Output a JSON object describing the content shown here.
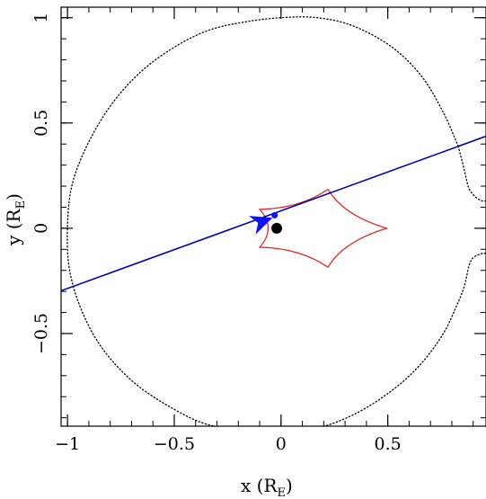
{
  "chart_data": {
    "type": "line",
    "title": "",
    "xlabel": {
      "main": "x (R",
      "sub": "E",
      "close": ")"
    },
    "ylabel": {
      "main": "y (R",
      "sub": "E",
      "close": ")"
    },
    "xlim": [
      -1.03,
      0.96
    ],
    "ylim": [
      -0.94,
      1.05
    ],
    "x_ticks": [
      {
        "value": -1,
        "label": "−1"
      },
      {
        "value": -0.5,
        "label": "−0.5"
      },
      {
        "value": 0,
        "label": "0"
      },
      {
        "value": 0.5,
        "label": "0.5"
      }
    ],
    "y_ticks": [
      {
        "value": -0.5,
        "label": "−0.5"
      },
      {
        "value": 0,
        "label": "0"
      },
      {
        "value": 0.5,
        "label": "0.5"
      },
      {
        "value": 1,
        "label": "1"
      }
    ],
    "x_minor_step": 0.1,
    "y_minor_step": 0.1,
    "grid": false,
    "colors": {
      "critical_curve": "#000000",
      "caustic": "#e02020",
      "trajectory": "#0000b0",
      "arrow": "#1010ff",
      "primary_lens": "#000000"
    },
    "critical_curve_outer": {
      "style": "dotted",
      "points": [
        [
          0.83,
          0.39
        ],
        [
          0.76,
          0.55
        ],
        [
          0.66,
          0.72
        ],
        [
          0.52,
          0.86
        ],
        [
          0.34,
          0.96
        ],
        [
          0.17,
          1.0
        ],
        [
          0.0,
          1.0
        ],
        [
          -0.17,
          0.98
        ],
        [
          -0.34,
          0.94
        ],
        [
          -0.5,
          0.86
        ],
        [
          -0.66,
          0.74
        ],
        [
          -0.8,
          0.58
        ],
        [
          -0.91,
          0.39
        ],
        [
          -0.98,
          0.2
        ],
        [
          -1.0,
          0.0
        ],
        [
          -0.99,
          -0.2
        ],
        [
          -0.93,
          -0.4
        ],
        [
          -0.83,
          -0.58
        ],
        [
          -0.68,
          -0.74
        ],
        [
          -0.5,
          -0.86
        ],
        [
          -0.35,
          -0.93
        ],
        [
          -0.18,
          -0.96
        ],
        [
          0.0,
          -0.97
        ],
        [
          0.17,
          -0.95
        ],
        [
          0.35,
          -0.88
        ],
        [
          0.52,
          -0.77
        ],
        [
          0.65,
          -0.65
        ],
        [
          0.76,
          -0.5
        ],
        [
          0.83,
          -0.35
        ],
        [
          0.86,
          -0.27
        ],
        [
          0.88,
          -0.18
        ],
        [
          0.9,
          -0.14
        ],
        [
          0.94,
          -0.12
        ],
        [
          0.96,
          -0.12
        ]
      ]
    },
    "critical_curve_upper_right": {
      "style": "dotted",
      "points": [
        [
          0.83,
          0.39
        ],
        [
          0.86,
          0.27
        ],
        [
          0.88,
          0.19
        ],
        [
          0.91,
          0.15
        ],
        [
          0.94,
          0.13
        ],
        [
          0.96,
          0.13
        ]
      ]
    },
    "caustic": {
      "cusps": [
        [
          0.495,
          0.0
        ],
        [
          0.22,
          0.185
        ],
        [
          -0.1,
          0.09
        ],
        [
          -0.1,
          -0.09
        ],
        [
          0.22,
          -0.185
        ]
      ],
      "bow": 0.32
    },
    "trajectory": {
      "points": [
        [
          -1.03,
          -0.297
        ],
        [
          0.96,
          0.437
        ]
      ],
      "arrow_at": [
        -0.04,
        0.05
      ]
    },
    "source_dot": [
      -0.03,
      0.062
    ],
    "primary_lens": [
      -0.02,
      0.0
    ]
  }
}
